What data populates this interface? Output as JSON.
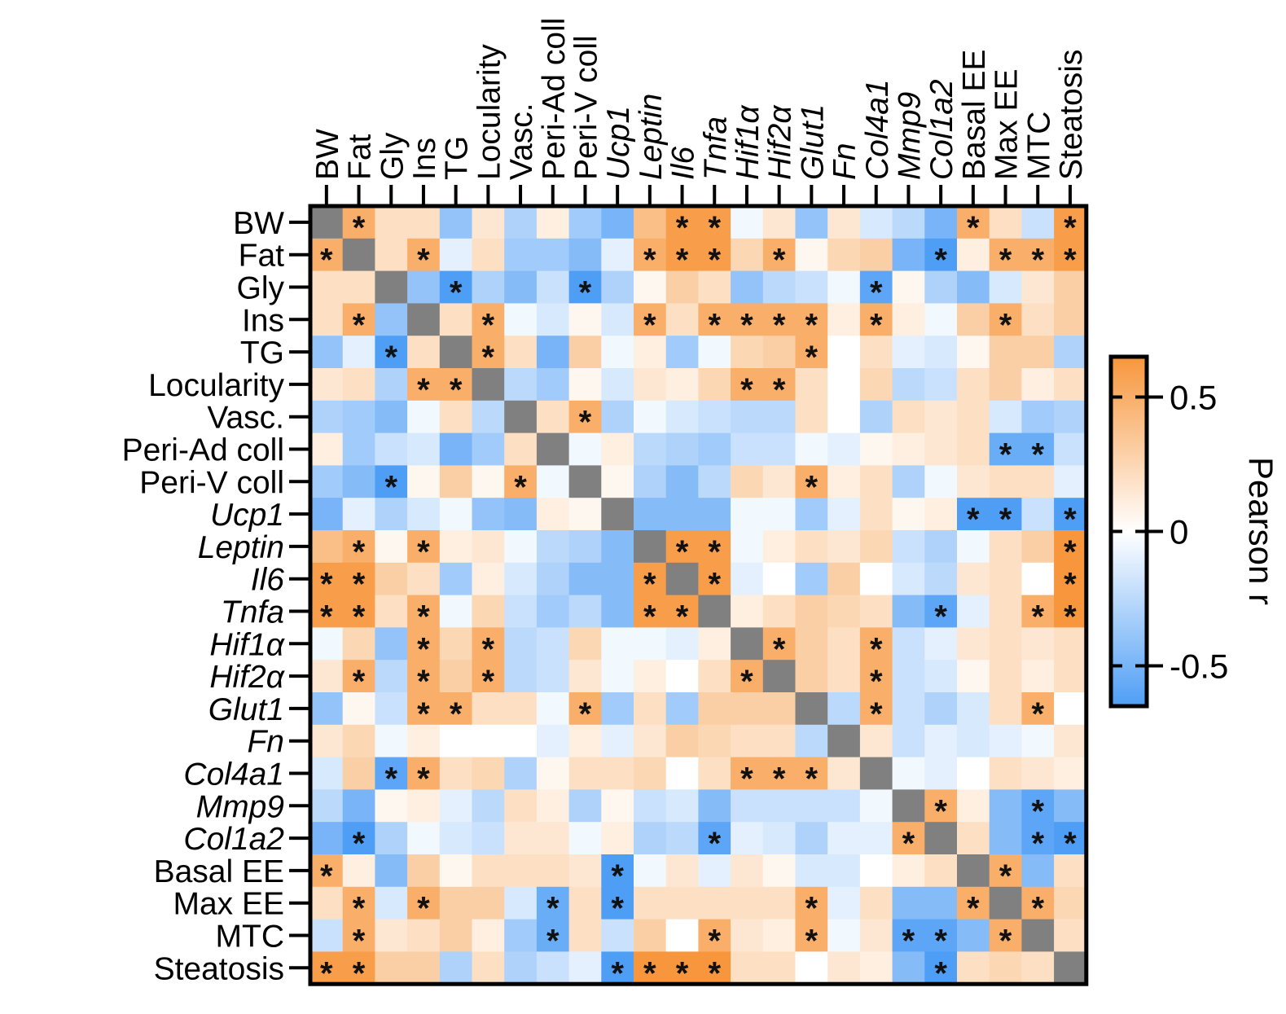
{
  "chart_data": {
    "type": "heatmap",
    "variables": [
      {
        "name": "BW",
        "italic": false
      },
      {
        "name": "Fat",
        "italic": false
      },
      {
        "name": "Gly",
        "italic": false
      },
      {
        "name": "Ins",
        "italic": false
      },
      {
        "name": "TG",
        "italic": false
      },
      {
        "name": "Locularity",
        "italic": false
      },
      {
        "name": "Vasc.",
        "italic": false
      },
      {
        "name": "Peri-Ad coll",
        "italic": false
      },
      {
        "name": "Peri-V coll",
        "italic": false
      },
      {
        "name": "Ucp1",
        "italic": true
      },
      {
        "name": "Leptin",
        "italic": true
      },
      {
        "name": "Il6",
        "italic": true
      },
      {
        "name": "Tnfa",
        "italic": true
      },
      {
        "name": "Hif1α",
        "italic": true
      },
      {
        "name": "Hif2α",
        "italic": true
      },
      {
        "name": "Glut1",
        "italic": true
      },
      {
        "name": "Fn",
        "italic": true
      },
      {
        "name": "Col4a1",
        "italic": true
      },
      {
        "name": "Mmp9",
        "italic": true
      },
      {
        "name": "Col1a2",
        "italic": true
      },
      {
        "name": "Basal EE",
        "italic": false
      },
      {
        "name": "Max EE",
        "italic": false
      },
      {
        "name": "MTC",
        "italic": false
      },
      {
        "name": "Steatosis",
        "italic": false
      }
    ],
    "values": [
      [
        null,
        0.5,
        0.2,
        0.2,
        -0.4,
        0.15,
        -0.3,
        0.1,
        -0.35,
        -0.5,
        0.4,
        0.6,
        0.6,
        -0.05,
        0.15,
        -0.4,
        0.15,
        -0.15,
        -0.25,
        -0.5,
        0.5,
        0.2,
        -0.2,
        0.6
      ],
      [
        0.5,
        null,
        0.2,
        0.5,
        -0.1,
        0.2,
        -0.35,
        -0.35,
        -0.45,
        -0.1,
        0.5,
        0.6,
        0.6,
        0.25,
        0.5,
        0.05,
        0.25,
        0.3,
        -0.5,
        -0.65,
        0.1,
        0.5,
        0.5,
        0.6
      ],
      [
        0.2,
        0.2,
        null,
        -0.4,
        -0.65,
        -0.3,
        -0.45,
        -0.2,
        -0.65,
        -0.3,
        0.05,
        0.3,
        0.2,
        -0.4,
        -0.25,
        -0.2,
        -0.05,
        -0.6,
        0.05,
        -0.3,
        -0.45,
        -0.15,
        0.15,
        0.3
      ],
      [
        0.2,
        0.5,
        -0.4,
        null,
        0.2,
        0.5,
        -0.05,
        -0.15,
        0.05,
        -0.15,
        0.5,
        0.2,
        0.5,
        0.5,
        0.5,
        0.5,
        0.1,
        0.5,
        0.1,
        -0.05,
        0.3,
        0.5,
        0.2,
        0.3
      ],
      [
        -0.4,
        -0.1,
        -0.65,
        0.2,
        null,
        0.5,
        0.2,
        -0.5,
        0.3,
        -0.05,
        0.1,
        -0.35,
        -0.05,
        0.25,
        0.3,
        0.5,
        0.0,
        0.2,
        -0.1,
        -0.15,
        0.05,
        0.3,
        0.3,
        -0.3
      ],
      [
        0.15,
        0.2,
        -0.3,
        0.5,
        0.5,
        null,
        -0.25,
        -0.35,
        0.05,
        -0.15,
        0.15,
        0.1,
        0.25,
        0.5,
        0.5,
        0.2,
        0.0,
        0.25,
        -0.25,
        -0.2,
        0.2,
        0.3,
        0.1,
        0.2
      ],
      [
        -0.3,
        -0.35,
        -0.45,
        -0.05,
        0.2,
        -0.25,
        null,
        0.2,
        0.5,
        -0.3,
        -0.05,
        -0.15,
        -0.2,
        -0.25,
        -0.25,
        0.2,
        0.0,
        -0.3,
        0.2,
        0.15,
        0.2,
        -0.15,
        -0.35,
        -0.3
      ],
      [
        0.1,
        -0.35,
        -0.2,
        -0.15,
        -0.5,
        -0.35,
        0.2,
        null,
        -0.05,
        0.1,
        -0.25,
        -0.3,
        -0.35,
        -0.2,
        -0.2,
        -0.05,
        -0.1,
        0.05,
        0.1,
        0.15,
        0.2,
        -0.55,
        -0.55,
        -0.2
      ],
      [
        -0.35,
        -0.45,
        -0.65,
        0.05,
        0.3,
        0.05,
        0.5,
        -0.05,
        null,
        0.05,
        -0.3,
        -0.45,
        -0.25,
        0.25,
        0.15,
        0.5,
        0.1,
        0.2,
        -0.3,
        -0.05,
        0.15,
        0.2,
        0.2,
        -0.1
      ],
      [
        -0.5,
        -0.1,
        -0.3,
        -0.15,
        -0.05,
        -0.4,
        -0.45,
        0.1,
        0.05,
        null,
        -0.45,
        -0.45,
        -0.45,
        -0.05,
        -0.05,
        -0.35,
        -0.1,
        0.2,
        0.05,
        0.1,
        -0.65,
        -0.65,
        -0.2,
        -0.65
      ],
      [
        0.4,
        0.5,
        0.05,
        0.5,
        0.1,
        0.15,
        -0.05,
        -0.25,
        -0.3,
        -0.45,
        null,
        0.6,
        0.6,
        -0.05,
        0.1,
        0.2,
        0.15,
        0.25,
        -0.2,
        -0.3,
        -0.05,
        0.2,
        0.3,
        0.65
      ],
      [
        0.6,
        0.6,
        0.3,
        0.2,
        -0.35,
        0.1,
        -0.15,
        -0.3,
        -0.45,
        -0.45,
        0.6,
        null,
        0.6,
        -0.1,
        0.0,
        -0.35,
        0.3,
        0.0,
        -0.15,
        -0.25,
        0.15,
        0.2,
        0.0,
        0.65
      ],
      [
        0.6,
        0.6,
        0.2,
        0.5,
        -0.05,
        0.25,
        -0.2,
        -0.35,
        -0.25,
        -0.45,
        0.6,
        0.6,
        null,
        0.1,
        0.2,
        0.3,
        0.25,
        0.2,
        -0.45,
        -0.6,
        -0.1,
        0.2,
        0.5,
        0.65
      ],
      [
        -0.05,
        0.25,
        -0.4,
        0.5,
        0.25,
        0.5,
        -0.25,
        -0.2,
        0.25,
        -0.05,
        -0.05,
        -0.1,
        0.1,
        null,
        0.5,
        0.3,
        0.2,
        0.5,
        -0.2,
        -0.1,
        0.15,
        0.2,
        0.15,
        0.2
      ],
      [
        0.15,
        0.5,
        -0.25,
        0.5,
        0.3,
        0.5,
        -0.25,
        -0.2,
        0.15,
        -0.05,
        0.1,
        0.0,
        0.2,
        0.5,
        null,
        0.3,
        0.2,
        0.5,
        -0.2,
        -0.15,
        0.05,
        0.2,
        0.1,
        0.2
      ],
      [
        -0.4,
        0.05,
        -0.2,
        0.5,
        0.5,
        0.2,
        0.2,
        -0.05,
        0.5,
        -0.35,
        0.2,
        -0.35,
        0.3,
        0.3,
        0.3,
        null,
        -0.25,
        0.5,
        -0.2,
        -0.3,
        -0.15,
        0.2,
        0.5,
        0.0
      ],
      [
        0.15,
        0.25,
        -0.05,
        0.1,
        0.0,
        0.0,
        0.0,
        -0.1,
        0.1,
        -0.1,
        0.15,
        0.3,
        0.25,
        0.2,
        0.2,
        -0.25,
        null,
        0.15,
        -0.2,
        -0.1,
        -0.15,
        -0.1,
        -0.05,
        0.15
      ],
      [
        -0.15,
        0.3,
        -0.6,
        0.5,
        0.2,
        0.25,
        -0.3,
        0.05,
        0.2,
        0.2,
        0.25,
        0.0,
        0.2,
        0.5,
        0.5,
        0.5,
        0.15,
        null,
        -0.05,
        -0.1,
        0.0,
        0.2,
        0.15,
        0.1
      ],
      [
        -0.25,
        -0.5,
        0.05,
        0.1,
        -0.1,
        -0.25,
        0.2,
        0.1,
        -0.3,
        0.05,
        -0.2,
        -0.15,
        -0.45,
        -0.2,
        -0.2,
        -0.2,
        -0.2,
        -0.05,
        null,
        0.5,
        0.1,
        -0.45,
        -0.6,
        -0.45
      ],
      [
        -0.5,
        -0.65,
        -0.3,
        -0.05,
        -0.15,
        -0.2,
        0.15,
        0.15,
        -0.05,
        0.1,
        -0.3,
        -0.25,
        -0.6,
        -0.1,
        -0.15,
        -0.3,
        -0.1,
        -0.1,
        0.5,
        null,
        0.2,
        -0.45,
        -0.6,
        -0.65
      ],
      [
        0.5,
        0.1,
        -0.45,
        0.3,
        0.05,
        0.2,
        0.2,
        0.2,
        0.15,
        -0.65,
        -0.05,
        0.15,
        -0.1,
        0.15,
        0.05,
        -0.15,
        -0.15,
        0.0,
        0.1,
        0.2,
        null,
        0.5,
        -0.45,
        0.2
      ],
      [
        0.2,
        0.5,
        -0.15,
        0.5,
        0.3,
        0.3,
        -0.15,
        -0.55,
        0.2,
        -0.65,
        0.2,
        0.2,
        0.2,
        0.2,
        0.2,
        0.5,
        -0.1,
        0.2,
        -0.45,
        -0.45,
        0.5,
        null,
        0.5,
        0.25
      ],
      [
        -0.2,
        0.5,
        0.15,
        0.2,
        0.3,
        0.1,
        -0.35,
        -0.55,
        0.2,
        -0.2,
        0.3,
        0.0,
        0.5,
        0.15,
        0.1,
        0.5,
        -0.05,
        0.15,
        -0.6,
        -0.6,
        -0.45,
        0.5,
        null,
        0.2
      ],
      [
        0.6,
        0.6,
        0.3,
        0.3,
        -0.3,
        0.2,
        -0.3,
        -0.2,
        -0.1,
        -0.65,
        0.65,
        0.65,
        0.65,
        0.2,
        0.2,
        0.0,
        0.15,
        0.1,
        -0.45,
        -0.65,
        0.2,
        0.25,
        0.2,
        null
      ]
    ],
    "significance": [
      [
        "",
        "*",
        "",
        "",
        "",
        "",
        "",
        "",
        "",
        "",
        "",
        "*",
        "*",
        "",
        "",
        "",
        "",
        "",
        "",
        "",
        "*",
        "",
        "",
        "*"
      ],
      [
        "*",
        "",
        "",
        "*",
        "",
        "",
        "",
        "",
        "",
        "",
        "*",
        "*",
        "*",
        "",
        "*",
        "",
        "",
        "",
        "",
        "*",
        "",
        "*",
        "*",
        "*"
      ],
      [
        "",
        "",
        "",
        "",
        "*",
        "",
        "",
        "",
        "*",
        "",
        "",
        "",
        "",
        "",
        "",
        "",
        "",
        "*",
        "",
        "",
        "",
        "",
        "",
        ""
      ],
      [
        "",
        "*",
        "",
        "",
        "",
        "*",
        "",
        "",
        "",
        "",
        "*",
        "",
        "*",
        "*",
        "*",
        "*",
        "",
        "*",
        "",
        "",
        "",
        "*",
        "",
        ""
      ],
      [
        "",
        "",
        "*",
        "",
        "",
        "*",
        "",
        "",
        "",
        "",
        "",
        "",
        "",
        "",
        "",
        "*",
        "",
        "",
        "",
        "",
        "",
        "",
        "",
        ""
      ],
      [
        "",
        "",
        "",
        "*",
        "*",
        "",
        "",
        "",
        "",
        "",
        "",
        "",
        "",
        "*",
        "*",
        "",
        "",
        "",
        "",
        "",
        "",
        "",
        "",
        ""
      ],
      [
        "",
        "",
        "",
        "",
        "",
        "",
        "",
        "",
        "*",
        "",
        "",
        "",
        "",
        "",
        "",
        "",
        "",
        "",
        "",
        "",
        "",
        "",
        "",
        ""
      ],
      [
        "",
        "",
        "",
        "",
        "",
        "",
        "",
        "",
        "",
        "",
        "",
        "",
        "",
        "",
        "",
        "",
        "",
        "",
        "",
        "",
        "",
        "*",
        "*",
        ""
      ],
      [
        "",
        "",
        "*",
        "",
        "",
        "",
        "*",
        "",
        "",
        "",
        "",
        "",
        "",
        "",
        "",
        "*",
        "",
        "",
        "",
        "",
        "",
        "",
        "",
        ""
      ],
      [
        "",
        "",
        "",
        "",
        "",
        "",
        "",
        "",
        "",
        "",
        "",
        "",
        "",
        "",
        "",
        "",
        "",
        "",
        "",
        "",
        "*",
        "*",
        "",
        "*"
      ],
      [
        "",
        "*",
        "",
        "*",
        "",
        "",
        "",
        "",
        "",
        "",
        "",
        "*",
        "*",
        "",
        "",
        "",
        "",
        "",
        "",
        "",
        "",
        "",
        "",
        "*"
      ],
      [
        "*",
        "*",
        "",
        "",
        "",
        "",
        "",
        "",
        "",
        "",
        "*",
        "",
        "*",
        "",
        "",
        "",
        "",
        "",
        "",
        "",
        "",
        "",
        "",
        "*"
      ],
      [
        "*",
        "*",
        "",
        "*",
        "",
        "",
        "",
        "",
        "",
        "",
        "*",
        "*",
        "",
        "",
        "",
        "",
        "",
        "",
        "",
        "*",
        "",
        "",
        "*",
        "*"
      ],
      [
        "",
        "",
        "",
        "*",
        "",
        "*",
        "",
        "",
        "",
        "",
        "",
        "",
        "",
        "",
        "*",
        "",
        "",
        "*",
        "",
        "",
        "",
        "",
        "",
        ""
      ],
      [
        "",
        "*",
        "",
        "*",
        "",
        "*",
        "",
        "",
        "",
        "",
        "",
        "",
        "",
        "*",
        "",
        "",
        "",
        "*",
        "",
        "",
        "",
        "",
        "",
        ""
      ],
      [
        "",
        "",
        "",
        "*",
        "*",
        "",
        "",
        "",
        "*",
        "",
        "",
        "",
        "",
        "",
        "",
        "",
        "",
        "*",
        "",
        "",
        "",
        "",
        "*",
        ""
      ],
      [
        "",
        "",
        "",
        "",
        "",
        "",
        "",
        "",
        "",
        "",
        "",
        "",
        "",
        "",
        "",
        "",
        "",
        "",
        "",
        "",
        "",
        "",
        "",
        ""
      ],
      [
        "",
        "",
        "*",
        "*",
        "",
        "",
        "",
        "",
        "",
        "",
        "",
        "",
        "",
        "*",
        "*",
        "*",
        "",
        "",
        "",
        "",
        "",
        "",
        "",
        ""
      ],
      [
        "",
        "",
        "",
        "",
        "",
        "",
        "",
        "",
        "",
        "",
        "",
        "",
        "",
        "",
        "",
        "",
        "",
        "",
        "",
        "*",
        "",
        "",
        "*",
        ""
      ],
      [
        "",
        "*",
        "",
        "",
        "",
        "",
        "",
        "",
        "",
        "",
        "",
        "",
        "*",
        "",
        "",
        "",
        "",
        "",
        "*",
        "",
        "",
        "",
        "*",
        "*"
      ],
      [
        "*",
        "",
        "",
        "",
        "",
        "",
        "",
        "",
        "",
        "*",
        "",
        "",
        "",
        "",
        "",
        "",
        "",
        "",
        "",
        "",
        "",
        "*",
        "",
        ""
      ],
      [
        "",
        "*",
        "",
        "*",
        "",
        "",
        "",
        "*",
        "",
        "*",
        "",
        "",
        "",
        "",
        "",
        "*",
        "",
        "",
        "",
        "",
        "*",
        "",
        "*",
        ""
      ],
      [
        "",
        "*",
        "",
        "",
        "",
        "",
        "",
        "*",
        "",
        "",
        "",
        "",
        "*",
        "",
        "",
        "*",
        "",
        "",
        "*",
        "*",
        "",
        "*",
        "",
        ""
      ],
      [
        "*",
        "*",
        "",
        "",
        "",
        "",
        "",
        "",
        "",
        "*",
        "*",
        "*",
        "*",
        "",
        "",
        "",
        "",
        "",
        "",
        "*",
        "",
        "",
        "",
        ""
      ]
    ],
    "diagonal_color": "#808080",
    "colorscale": {
      "low": "#4f9ef5",
      "mid": "#ffffff",
      "high": "#f7963c",
      "min": -0.65,
      "max": 0.65
    },
    "colorbar": {
      "title": "Pearson r",
      "ticks": [
        {
          "value": 0.5,
          "label": "0.5"
        },
        {
          "value": 0,
          "label": "0"
        },
        {
          "value": -0.5,
          "label": "-0.5"
        }
      ]
    }
  }
}
